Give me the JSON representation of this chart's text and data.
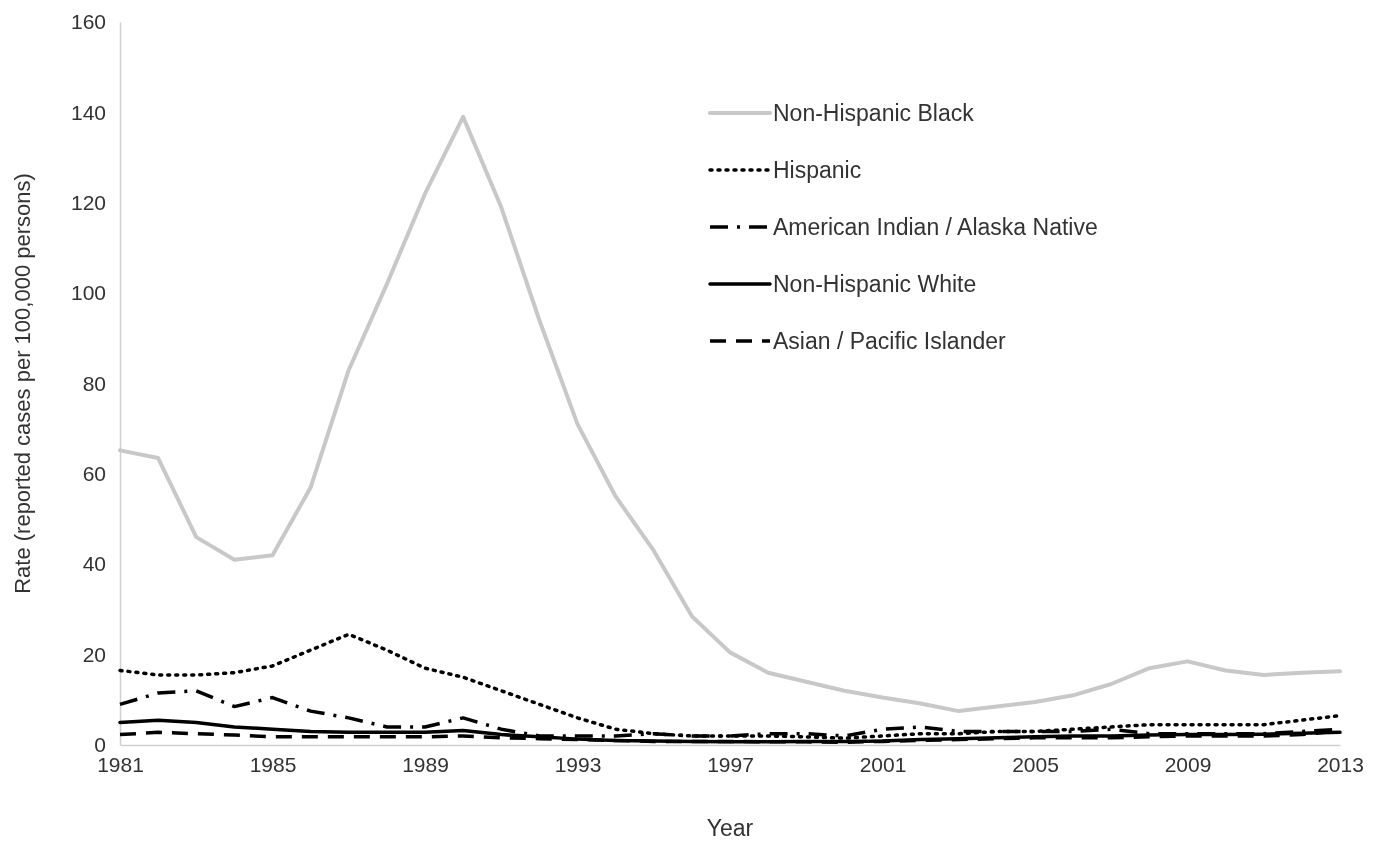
{
  "chart_data": {
    "type": "line",
    "xlabel": "Year",
    "ylabel": "Rate (reported cases per 100,000 persons)",
    "x": [
      1981,
      1982,
      1983,
      1984,
      1985,
      1986,
      1987,
      1988,
      1989,
      1990,
      1991,
      1992,
      1993,
      1994,
      1995,
      1996,
      1997,
      1998,
      1999,
      2000,
      2001,
      2002,
      2003,
      2004,
      2005,
      2006,
      2007,
      2008,
      2009,
      2010,
      2011,
      2012,
      2013
    ],
    "xlim": [
      1981,
      2013
    ],
    "xticks": [
      1981,
      1985,
      1989,
      1993,
      1997,
      2001,
      2005,
      2009,
      2013
    ],
    "ylim": [
      0,
      160
    ],
    "yticks": [
      0,
      20,
      40,
      60,
      80,
      100,
      120,
      140,
      160
    ],
    "grid": false,
    "legend": "top right",
    "series": [
      {
        "name": "Non-Hispanic Black",
        "color": "#c8c8c8",
        "line_style": "solid",
        "values": [
          65.2,
          63.5,
          46,
          41,
          42,
          57,
          83,
          102,
          122,
          139,
          119,
          94,
          71,
          55,
          43,
          28.5,
          20.5,
          16,
          14,
          12,
          10.5,
          9.2,
          7.5,
          8.5,
          9.5,
          11,
          13.5,
          17,
          18.5,
          16.5,
          15.5,
          16,
          16.3
        ]
      },
      {
        "name": "Hispanic",
        "color": "#000000",
        "line_style": "dotted",
        "values": [
          16.5,
          15.5,
          15.5,
          16,
          17.5,
          21,
          24.5,
          21,
          17,
          15,
          12,
          9,
          6,
          3.5,
          2.5,
          2,
          2,
          2,
          1.8,
          1.5,
          2,
          2.5,
          2.5,
          3,
          3,
          3.5,
          4,
          4.5,
          4.5,
          4.5,
          4.5,
          5.5,
          6.5
        ]
      },
      {
        "name": "American Indian / Alaska Native",
        "color": "#000000",
        "line_style": "dashdot",
        "values": [
          9,
          11.5,
          12,
          8.5,
          10.5,
          7.5,
          6,
          4,
          4,
          6,
          3.5,
          2,
          2,
          2,
          2.5,
          2,
          2,
          2.5,
          2.5,
          2,
          3.5,
          4,
          3,
          3,
          3,
          3,
          3.5,
          2.5,
          2.5,
          2.5,
          2.5,
          3,
          3.5
        ]
      },
      {
        "name": "Non-Hispanic White",
        "color": "#000000",
        "line_style": "solid",
        "values": [
          5,
          5.5,
          5,
          4,
          3.5,
          3,
          2.8,
          2.8,
          2.8,
          3.2,
          2.3,
          1.8,
          1.3,
          1,
          0.9,
          0.8,
          0.7,
          0.7,
          0.8,
          0.8,
          0.9,
          1.2,
          1.4,
          1.6,
          1.8,
          2,
          2,
          2.2,
          2.3,
          2.3,
          2.4,
          2.6,
          2.8
        ]
      },
      {
        "name": "Asian / Pacific Islander",
        "color": "#000000",
        "line_style": "dashed",
        "values": [
          2.3,
          2.8,
          2.5,
          2.2,
          1.8,
          1.8,
          1.8,
          1.8,
          1.8,
          2,
          1.6,
          1.4,
          1.2,
          1,
          0.8,
          0.8,
          0.8,
          0.7,
          0.7,
          0.6,
          0.8,
          1,
          1.2,
          1.4,
          1.6,
          1.6,
          1.6,
          1.8,
          2,
          2,
          2,
          2.3,
          3.2
        ]
      }
    ]
  }
}
